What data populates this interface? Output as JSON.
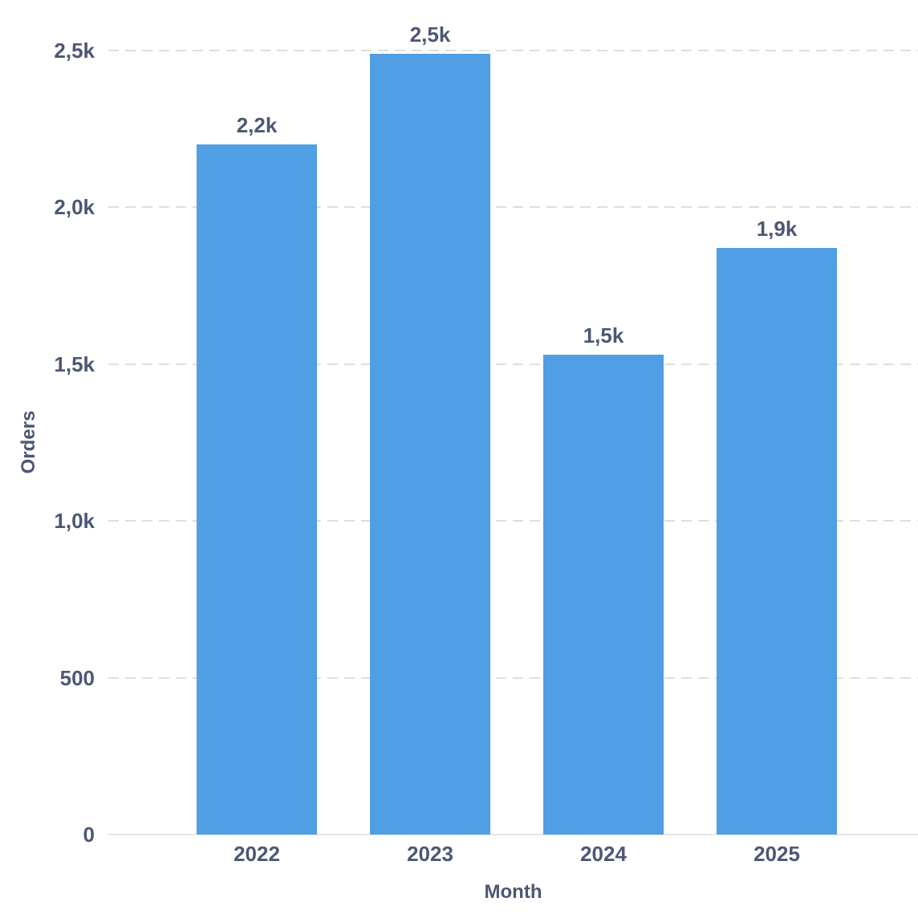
{
  "chart_data": {
    "type": "bar",
    "title": "",
    "categories": [
      "2022",
      "2023",
      "2024",
      "2025"
    ],
    "values": [
      2200,
      2490,
      1530,
      1870
    ],
    "value_labels": [
      "2,2k",
      "2,5k",
      "1,5k",
      "1,9k"
    ],
    "xlabel": "Month",
    "ylabel": "Orders",
    "ylim": [
      0,
      2660
    ],
    "yticks": [
      {
        "value": 0,
        "label": "0"
      },
      {
        "value": 500,
        "label": "500"
      },
      {
        "value": 1000,
        "label": "1,0k"
      },
      {
        "value": 1500,
        "label": "1,5k"
      },
      {
        "value": 2000,
        "label": "2,0k"
      },
      {
        "value": 2500,
        "label": "2,5k"
      }
    ],
    "grid": "horizontal-dashed",
    "legend": "none",
    "background": "#FFFFFF",
    "colors": {
      "bar": "#509EE3",
      "label": "#4C5773",
      "gridline": "#DEDEDE",
      "axis_line": "#E6E6E6"
    }
  }
}
